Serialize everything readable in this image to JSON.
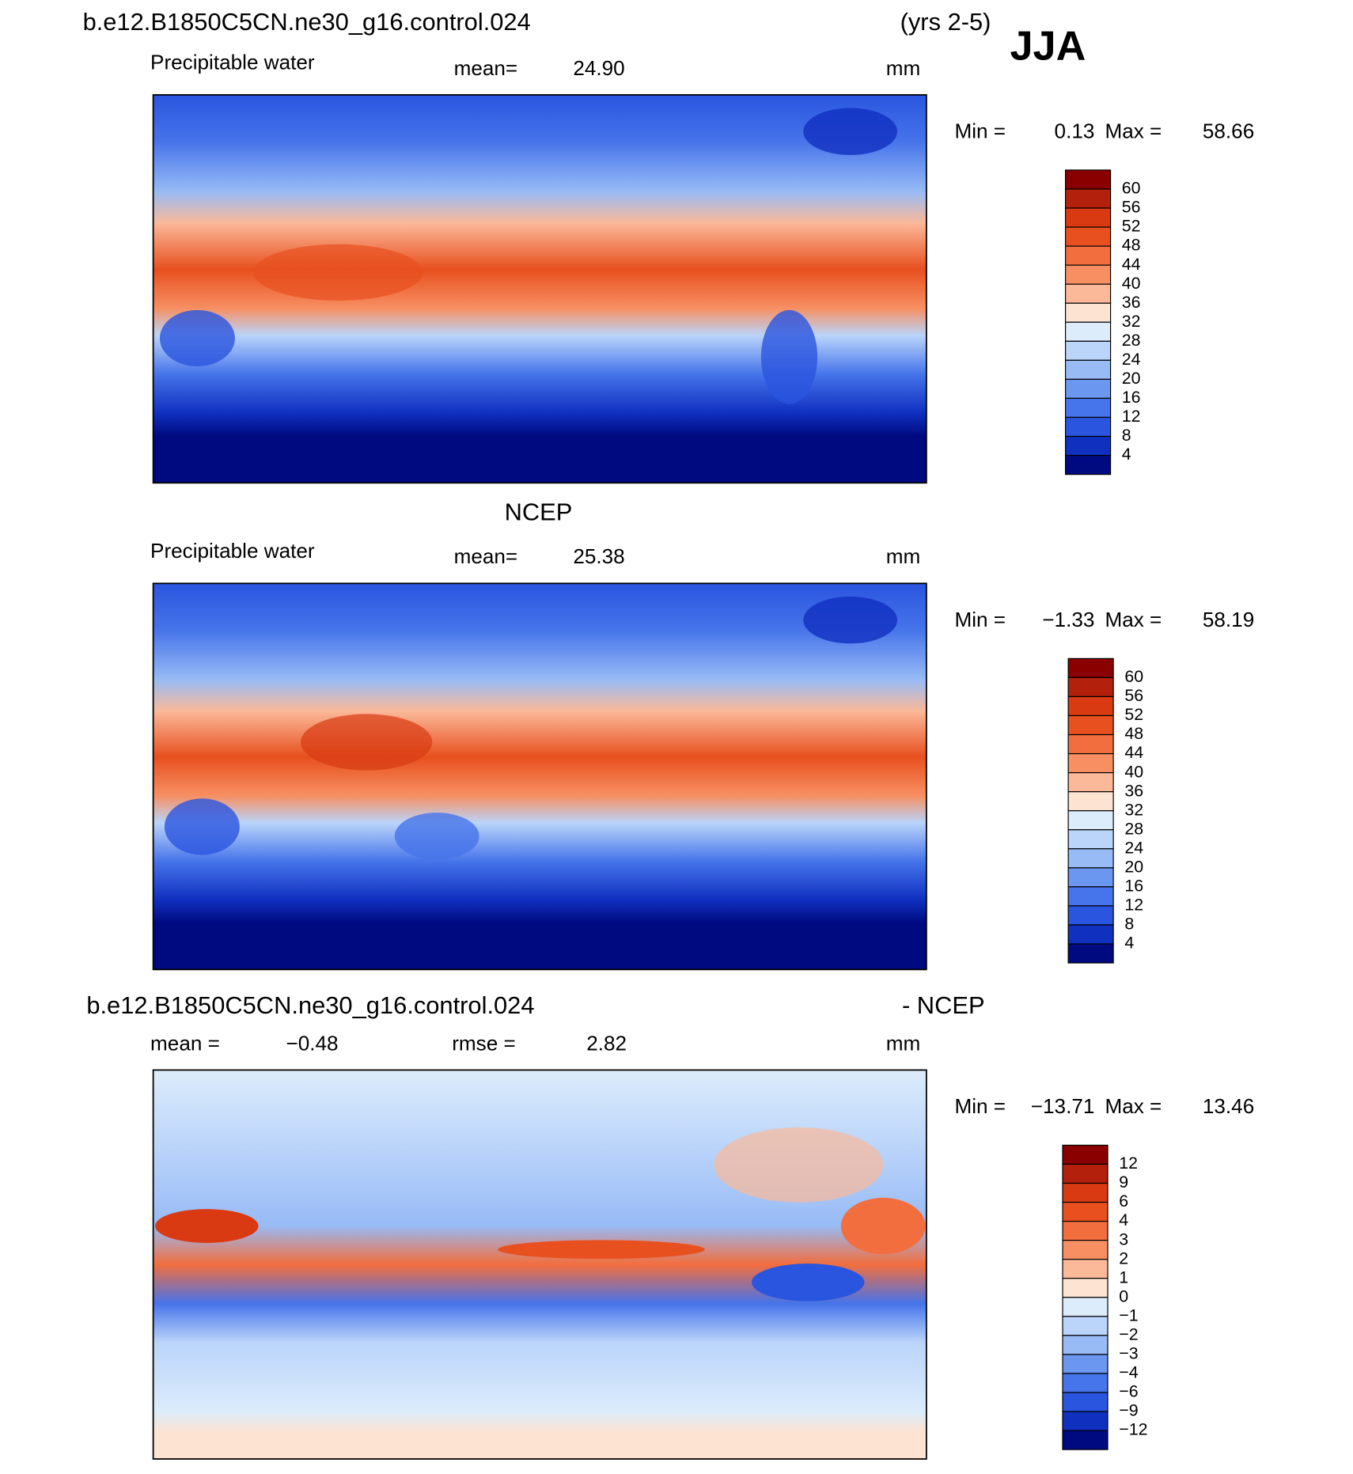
{
  "header": {
    "case": "b.e12.B1850C5CN.ne30_g16.control.024",
    "years": "(yrs 2-5)",
    "season": "JJA"
  },
  "panels": [
    {
      "variable": "Precipitable water",
      "mean_label": "mean=",
      "mean": "24.90",
      "units": "mm",
      "min_label": "Min =",
      "min": "0.13",
      "max_label": "Max =",
      "max": "58.66",
      "levels": [
        "60",
        "56",
        "52",
        "48",
        "44",
        "40",
        "36",
        "32",
        "28",
        "24",
        "20",
        "16",
        "12",
        "8",
        "4"
      ],
      "colors": [
        "#8a0000",
        "#b3200c",
        "#d93a12",
        "#e8501f",
        "#f26e3e",
        "#f78f62",
        "#fbb999",
        "#fde3d2",
        "#dcecfb",
        "#bad4fa",
        "#98bbf6",
        "#6c97f0",
        "#4674ea",
        "#2a55df",
        "#1030c0",
        "#000a80"
      ]
    },
    {
      "title": "NCEP",
      "variable": "Precipitable water",
      "mean_label": "mean=",
      "mean": "25.38",
      "units": "mm",
      "min_label": "Min =",
      "min": "−1.33",
      "max_label": "Max =",
      "max": "58.19",
      "levels": [
        "60",
        "56",
        "52",
        "48",
        "44",
        "40",
        "36",
        "32",
        "28",
        "24",
        "20",
        "16",
        "12",
        "8",
        "4"
      ],
      "colors": [
        "#8a0000",
        "#b3200c",
        "#d93a12",
        "#e8501f",
        "#f26e3e",
        "#f78f62",
        "#fbb999",
        "#fde3d2",
        "#dcecfb",
        "#bad4fa",
        "#98bbf6",
        "#6c97f0",
        "#4674ea",
        "#2a55df",
        "#1030c0",
        "#000a80"
      ]
    },
    {
      "title": "b.e12.B1850C5CN.ne30_g16.control.024",
      "title_right": "- NCEP",
      "mean_label": "mean =",
      "mean": "−0.48",
      "rmse_label": "rmse =",
      "rmse": "2.82",
      "units": "mm",
      "min_label": "Min =",
      "min": "−13.71",
      "max_label": "Max =",
      "max": "13.46",
      "levels": [
        "12",
        "9",
        "6",
        "4",
        "3",
        "2",
        "1",
        "0",
        "−1",
        "−2",
        "−3",
        "−4",
        "−6",
        "−9",
        "−12"
      ],
      "colors": [
        "#8a0000",
        "#b3200c",
        "#d93a12",
        "#e8501f",
        "#f26e3e",
        "#f78f62",
        "#fbb999",
        "#fde3d2",
        "#dcecfb",
        "#bad4fa",
        "#98bbf6",
        "#6c97f0",
        "#4674ea",
        "#2a55df",
        "#1030c0",
        "#000a80"
      ]
    }
  ]
}
